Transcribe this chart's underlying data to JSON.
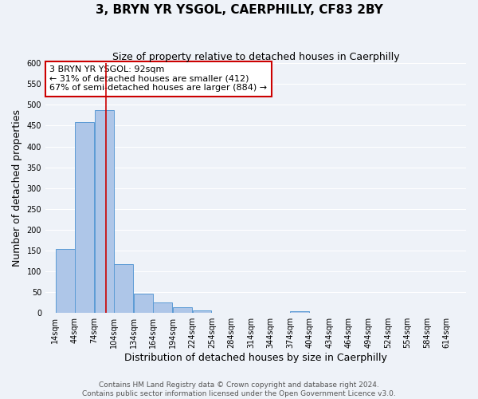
{
  "title": "3, BRYN YR YSGOL, CAERPHILLY, CF83 2BY",
  "subtitle": "Size of property relative to detached houses in Caerphilly",
  "xlabel": "Distribution of detached houses by size in Caerphilly",
  "ylabel": "Number of detached properties",
  "bar_bins": [
    14,
    44,
    74,
    104,
    134,
    164,
    194,
    224,
    254,
    284,
    314,
    344,
    374,
    404,
    434,
    464,
    494,
    524,
    554,
    584,
    614
  ],
  "bar_heights": [
    153,
    458,
    487,
    117,
    47,
    25,
    14,
    7,
    0,
    0,
    0,
    0,
    5,
    0,
    0,
    0,
    0,
    0,
    0,
    0
  ],
  "bar_color": "#aec6e8",
  "bar_edge_color": "#5b9bd5",
  "vline_x": 92,
  "vline_color": "#cc0000",
  "annotation_text": "3 BRYN YR YSGOL: 92sqm\n← 31% of detached houses are smaller (412)\n67% of semi-detached houses are larger (884) →",
  "annotation_box_color": "#ffffff",
  "annotation_box_edge": "#cc0000",
  "ylim": [
    0,
    600
  ],
  "yticks": [
    0,
    50,
    100,
    150,
    200,
    250,
    300,
    350,
    400,
    450,
    500,
    550,
    600
  ],
  "tick_labels": [
    "14sqm",
    "44sqm",
    "74sqm",
    "104sqm",
    "134sqm",
    "164sqm",
    "194sqm",
    "224sqm",
    "254sqm",
    "284sqm",
    "314sqm",
    "344sqm",
    "374sqm",
    "404sqm",
    "434sqm",
    "464sqm",
    "494sqm",
    "524sqm",
    "554sqm",
    "584sqm",
    "614sqm"
  ],
  "footer_text": "Contains HM Land Registry data © Crown copyright and database right 2024.\nContains public sector information licensed under the Open Government Licence v3.0.",
  "background_color": "#eef2f8",
  "plot_background": "#eef2f8",
  "grid_color": "#ffffff",
  "title_fontsize": 11,
  "subtitle_fontsize": 9,
  "axis_label_fontsize": 9,
  "tick_fontsize": 7,
  "footer_fontsize": 6.5,
  "annotation_fontsize": 8
}
